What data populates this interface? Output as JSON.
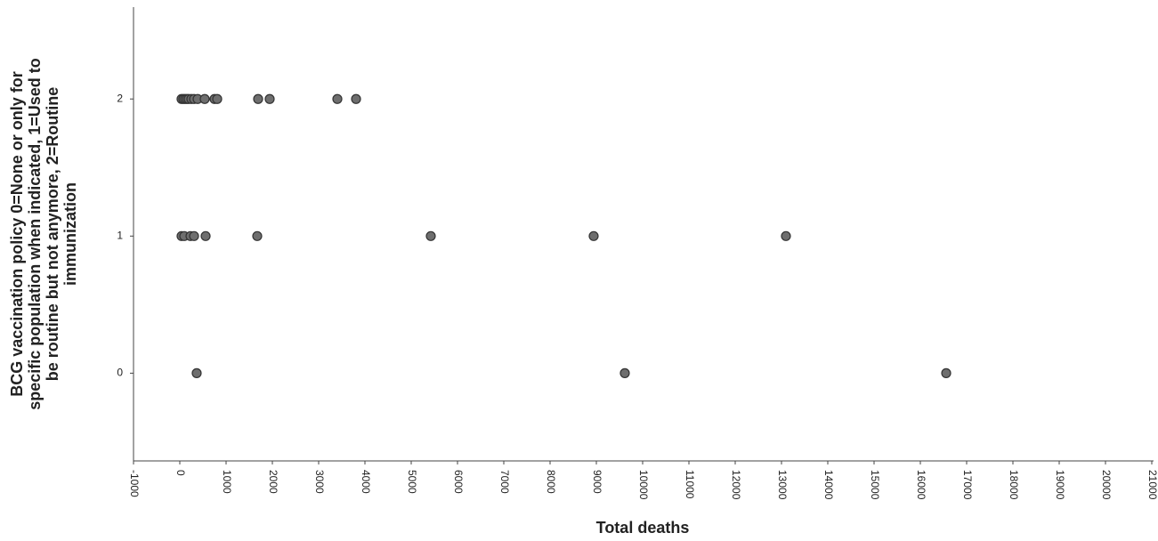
{
  "chart_data": {
    "type": "scatter",
    "x_label": "Total deaths",
    "y_label": [
      "BCG vaccination policy 0=None or only for",
      "specific population when indicated, 1=Used to",
      "be routine but not anymore, 2=Routine",
      "immunization"
    ],
    "series": [
      {
        "color": "#6e6e6e",
        "x": [
          38,
          77,
          115,
          154,
          192,
          250,
          308,
          385,
          538,
          750,
          808,
          1692,
          1942,
          3404,
          3808,
          38,
          96,
          231,
          308,
          558,
          1673,
          5423,
          8942,
          13096,
          365,
          9615,
          16558
        ],
        "values": [
          2,
          2,
          2,
          2,
          2,
          2,
          2,
          2,
          2,
          2,
          2,
          2,
          2,
          2,
          2,
          1,
          1,
          1,
          1,
          1,
          1,
          1,
          1,
          1,
          0,
          0,
          0
        ]
      }
    ],
    "xlim": [
      -1000,
      21000
    ],
    "xticks": [
      -1000,
      0,
      1000,
      2000,
      3000,
      4000,
      5000,
      6000,
      7000,
      8000,
      9000,
      10000,
      11000,
      12000,
      13000,
      14000,
      15000,
      16000,
      17000,
      18000,
      19000,
      20000,
      21000
    ],
    "ylim": [
      -0.64,
      2.67
    ],
    "yticks": [
      0,
      1,
      2
    ],
    "grid": false
  }
}
